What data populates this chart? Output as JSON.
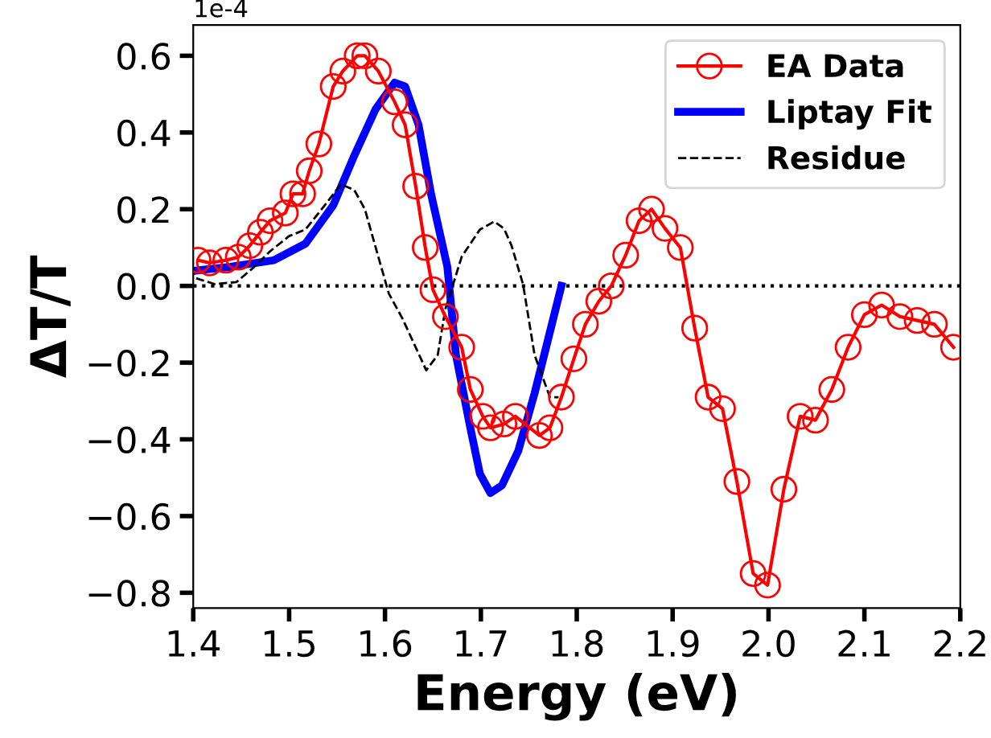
{
  "chart_data": {
    "type": "line",
    "xlabel": "Energy (eV)",
    "ylabel": "ΔT/T",
    "annotations": [
      "1e-4"
    ],
    "xlim": [
      1.4,
      2.2
    ],
    "ylim": [
      -0.84,
      0.68
    ],
    "xticks": [
      {
        "value": 1.4,
        "label": "1.4"
      },
      {
        "value": 1.5,
        "label": "1.5"
      },
      {
        "value": 1.6,
        "label": "1.6"
      },
      {
        "value": 1.7,
        "label": "1.7"
      },
      {
        "value": 1.8,
        "label": "1.8"
      },
      {
        "value": 1.9,
        "label": "1.9"
      },
      {
        "value": 2.0,
        "label": "2.0"
      },
      {
        "value": 2.1,
        "label": "2.1"
      },
      {
        "value": 2.2,
        "label": "2.2"
      }
    ],
    "yticks": [
      {
        "value": -0.8,
        "label": "−0.8"
      },
      {
        "value": -0.6,
        "label": "−0.6"
      },
      {
        "value": -0.4,
        "label": "−0.4"
      },
      {
        "value": -0.2,
        "label": "−0.2"
      },
      {
        "value": 0.0,
        "label": "0.0"
      },
      {
        "value": 0.2,
        "label": "0.2"
      },
      {
        "value": 0.4,
        "label": "0.4"
      },
      {
        "value": 0.6,
        "label": "0.6"
      }
    ],
    "grid": false,
    "legend": "top right",
    "ref_lines": [
      {
        "axis": "y",
        "value": 0,
        "color": "#000000",
        "line_style": "dotted"
      }
    ],
    "series": [
      {
        "name": "EA Data",
        "color": "#ff0000",
        "marker": "circle",
        "line_style": "solid",
        "x": [
          1.405,
          1.417,
          1.434,
          1.447,
          1.459,
          1.47,
          1.48,
          1.496,
          1.504,
          1.514,
          1.521,
          1.531,
          1.546,
          1.556,
          1.571,
          1.579,
          1.593,
          1.61,
          1.621,
          1.632,
          1.642,
          1.65,
          1.663,
          1.68,
          1.689,
          1.702,
          1.71,
          1.724,
          1.736,
          1.761,
          1.772,
          1.784,
          1.797,
          1.809,
          1.823,
          1.836,
          1.851,
          1.865,
          1.878,
          1.892,
          1.908,
          1.923,
          1.937,
          1.952,
          1.967,
          1.984,
          1.999,
          2.016,
          2.033,
          2.049,
          2.066,
          2.083,
          2.1,
          2.118,
          2.137,
          2.155,
          2.173,
          2.193
        ],
        "values": [
          0.067,
          0.06,
          0.067,
          0.075,
          0.105,
          0.14,
          0.17,
          0.19,
          0.24,
          0.24,
          0.3,
          0.37,
          0.52,
          0.56,
          0.6,
          0.6,
          0.56,
          0.48,
          0.42,
          0.26,
          0.1,
          -0.01,
          -0.08,
          -0.16,
          -0.27,
          -0.34,
          -0.37,
          -0.36,
          -0.34,
          -0.39,
          -0.37,
          -0.29,
          -0.19,
          -0.1,
          -0.04,
          0.0,
          0.08,
          0.17,
          0.2,
          0.15,
          0.1,
          -0.11,
          -0.29,
          -0.32,
          -0.51,
          -0.75,
          -0.78,
          -0.53,
          -0.34,
          -0.35,
          -0.27,
          -0.16,
          -0.075,
          -0.05,
          -0.08,
          -0.09,
          -0.1,
          -0.16
        ]
      },
      {
        "name": "Liptay Fit",
        "color": "#0000ff",
        "marker": "none",
        "line_style": "solid",
        "x": [
          1.403,
          1.439,
          1.484,
          1.517,
          1.546,
          1.568,
          1.59,
          1.61,
          1.621,
          1.635,
          1.648,
          1.665,
          1.674,
          1.689,
          1.699,
          1.71,
          1.722,
          1.739,
          1.756,
          1.769,
          1.784
        ],
        "values": [
          0.04,
          0.05,
          0.067,
          0.11,
          0.21,
          0.34,
          0.46,
          0.53,
          0.52,
          0.42,
          0.24,
          0.05,
          -0.18,
          -0.37,
          -0.49,
          -0.54,
          -0.52,
          -0.43,
          -0.28,
          -0.15,
          0.0
        ]
      },
      {
        "name": "Residue",
        "color": "#000000",
        "marker": "none",
        "line_style": "dashed",
        "x": [
          1.403,
          1.422,
          1.445,
          1.462,
          1.48,
          1.5,
          1.517,
          1.534,
          1.554,
          1.568,
          1.579,
          1.593,
          1.604,
          1.618,
          1.632,
          1.643,
          1.655,
          1.663,
          1.68,
          1.699,
          1.714,
          1.724,
          1.732,
          1.744,
          1.756,
          1.772,
          1.781
        ],
        "values": [
          0.02,
          0.005,
          0.01,
          0.046,
          0.09,
          0.13,
          0.147,
          0.2,
          0.265,
          0.25,
          0.2,
          0.076,
          -0.02,
          -0.084,
          -0.16,
          -0.22,
          -0.18,
          -0.06,
          0.076,
          0.147,
          0.168,
          0.15,
          0.105,
          0.004,
          -0.18,
          -0.29,
          -0.29
        ]
      }
    ]
  }
}
